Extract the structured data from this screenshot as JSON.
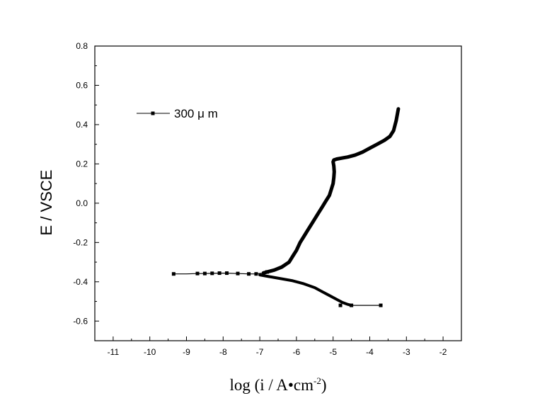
{
  "chart_data": {
    "type": "line",
    "xlabel": "log (i / A•cm",
    "xlabel_superscript": "-2",
    "xlabel_close": ")",
    "ylabel": "E / VSCE",
    "xlim": [
      -11.5,
      -1.5
    ],
    "ylim": [
      -0.7,
      0.8
    ],
    "x_ticks": [
      -11,
      -10,
      -9,
      -8,
      -7,
      -6,
      -5,
      -4,
      -3,
      -2
    ],
    "x_tick_labels": [
      "-11",
      "-10",
      "-9",
      "-8",
      "-7",
      "-6",
      "-5",
      "-4",
      "-3",
      "-2"
    ],
    "y_ticks": [
      -0.6,
      -0.4,
      -0.2,
      0.0,
      0.2,
      0.4,
      0.6,
      0.8
    ],
    "y_tick_labels": [
      "-0.6",
      "-0.4",
      "-0.2",
      "0.0",
      "0.2",
      "0.4",
      "0.6",
      "0.8"
    ],
    "grid": false,
    "legend_position": "top-left",
    "series": [
      {
        "name": "300 μ m",
        "color": "#000000",
        "marker": "square",
        "anodic": {
          "x": [
            -9.35,
            -9.0,
            -8.7,
            -8.5,
            -8.3,
            -8.1,
            -7.9,
            -7.6,
            -7.3,
            -7.1,
            -6.9,
            -6.8,
            -6.6,
            -6.4,
            -6.2,
            -6.1,
            -6.0,
            -5.9,
            -5.8,
            -5.7,
            -5.6,
            -5.5,
            -5.4,
            -5.3,
            -5.2,
            -5.1,
            -5.05,
            -5.0,
            -4.98,
            -4.97,
            -4.98,
            -5.0,
            -4.98,
            -4.9,
            -4.75,
            -4.6,
            -4.4,
            -4.2,
            -4.0,
            -3.8,
            -3.6,
            -3.45,
            -3.35,
            -3.28,
            -3.22
          ],
          "y": [
            -0.36,
            -0.36,
            -0.358,
            -0.358,
            -0.357,
            -0.356,
            -0.356,
            -0.358,
            -0.36,
            -0.36,
            -0.355,
            -0.35,
            -0.34,
            -0.325,
            -0.3,
            -0.27,
            -0.24,
            -0.2,
            -0.17,
            -0.14,
            -0.11,
            -0.08,
            -0.05,
            -0.02,
            0.01,
            0.04,
            0.07,
            0.1,
            0.13,
            0.16,
            0.19,
            0.21,
            0.22,
            0.225,
            0.23,
            0.235,
            0.245,
            0.26,
            0.28,
            0.3,
            0.32,
            0.34,
            0.37,
            0.42,
            0.48
          ]
        },
        "cathodic": {
          "x": [
            -7.0,
            -6.7,
            -6.4,
            -6.1,
            -5.8,
            -5.5,
            -5.3,
            -5.1,
            -4.9,
            -4.75,
            -4.6,
            -4.5,
            -4.3,
            -4.1,
            -3.9,
            -3.7
          ],
          "y": [
            -0.365,
            -0.375,
            -0.385,
            -0.395,
            -0.41,
            -0.43,
            -0.45,
            -0.47,
            -0.49,
            -0.505,
            -0.515,
            -0.52,
            -0.52,
            -0.52,
            -0.52,
            -0.52
          ]
        },
        "markers": {
          "x": [
            -9.35,
            -8.7,
            -8.5,
            -8.3,
            -8.1,
            -7.9,
            -7.6,
            -7.3,
            -7.1,
            -6.8,
            -4.8,
            -4.5,
            -3.7
          ],
          "y": [
            -0.36,
            -0.358,
            -0.358,
            -0.357,
            -0.356,
            -0.356,
            -0.358,
            -0.36,
            -0.36,
            -0.35,
            -0.52,
            -0.52,
            -0.52
          ]
        }
      }
    ]
  }
}
